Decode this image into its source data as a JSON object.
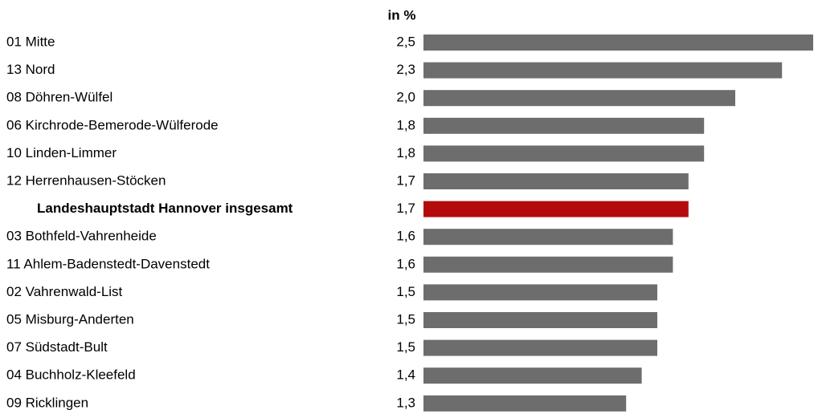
{
  "chart_data": {
    "type": "bar",
    "orientation": "horizontal",
    "unit_label": "in %",
    "categories": [
      "01 Mitte",
      "13 Nord",
      "08 Döhren-Wülfel",
      "06 Kirchrode-Bemerode-Wülferode",
      "10 Linden-Limmer",
      "12 Herrenhausen-Stöcken",
      "Landeshauptstadt Hannover insgesamt",
      "03 Bothfeld-Vahrenheide",
      "11 Ahlem-Badenstedt-Davenstedt",
      "02 Vahrenwald-List",
      "05 Misburg-Anderten",
      "07 Südstadt-Bult",
      "04 Buchholz-Kleefeld",
      "09 Ricklingen"
    ],
    "values": [
      2.5,
      2.3,
      2.0,
      1.8,
      1.8,
      1.7,
      1.7,
      1.6,
      1.6,
      1.5,
      1.5,
      1.5,
      1.4,
      1.3
    ],
    "value_labels": [
      "2,5",
      "2,3",
      "2,0",
      "1,8",
      "1,8",
      "1,7",
      "1,7",
      "1,6",
      "1,6",
      "1,5",
      "1,5",
      "1,5",
      "1,4",
      "1,3"
    ],
    "colors": [
      "#6d6d6d",
      "#6d6d6d",
      "#6d6d6d",
      "#6d6d6d",
      "#6d6d6d",
      "#6d6d6d",
      "#b40c0c",
      "#6d6d6d",
      "#6d6d6d",
      "#6d6d6d",
      "#6d6d6d",
      "#6d6d6d",
      "#6d6d6d",
      "#6d6d6d"
    ],
    "bold": [
      false,
      false,
      false,
      false,
      false,
      false,
      true,
      false,
      false,
      false,
      false,
      false,
      false,
      false
    ],
    "xlim": [
      0,
      2.5
    ]
  }
}
